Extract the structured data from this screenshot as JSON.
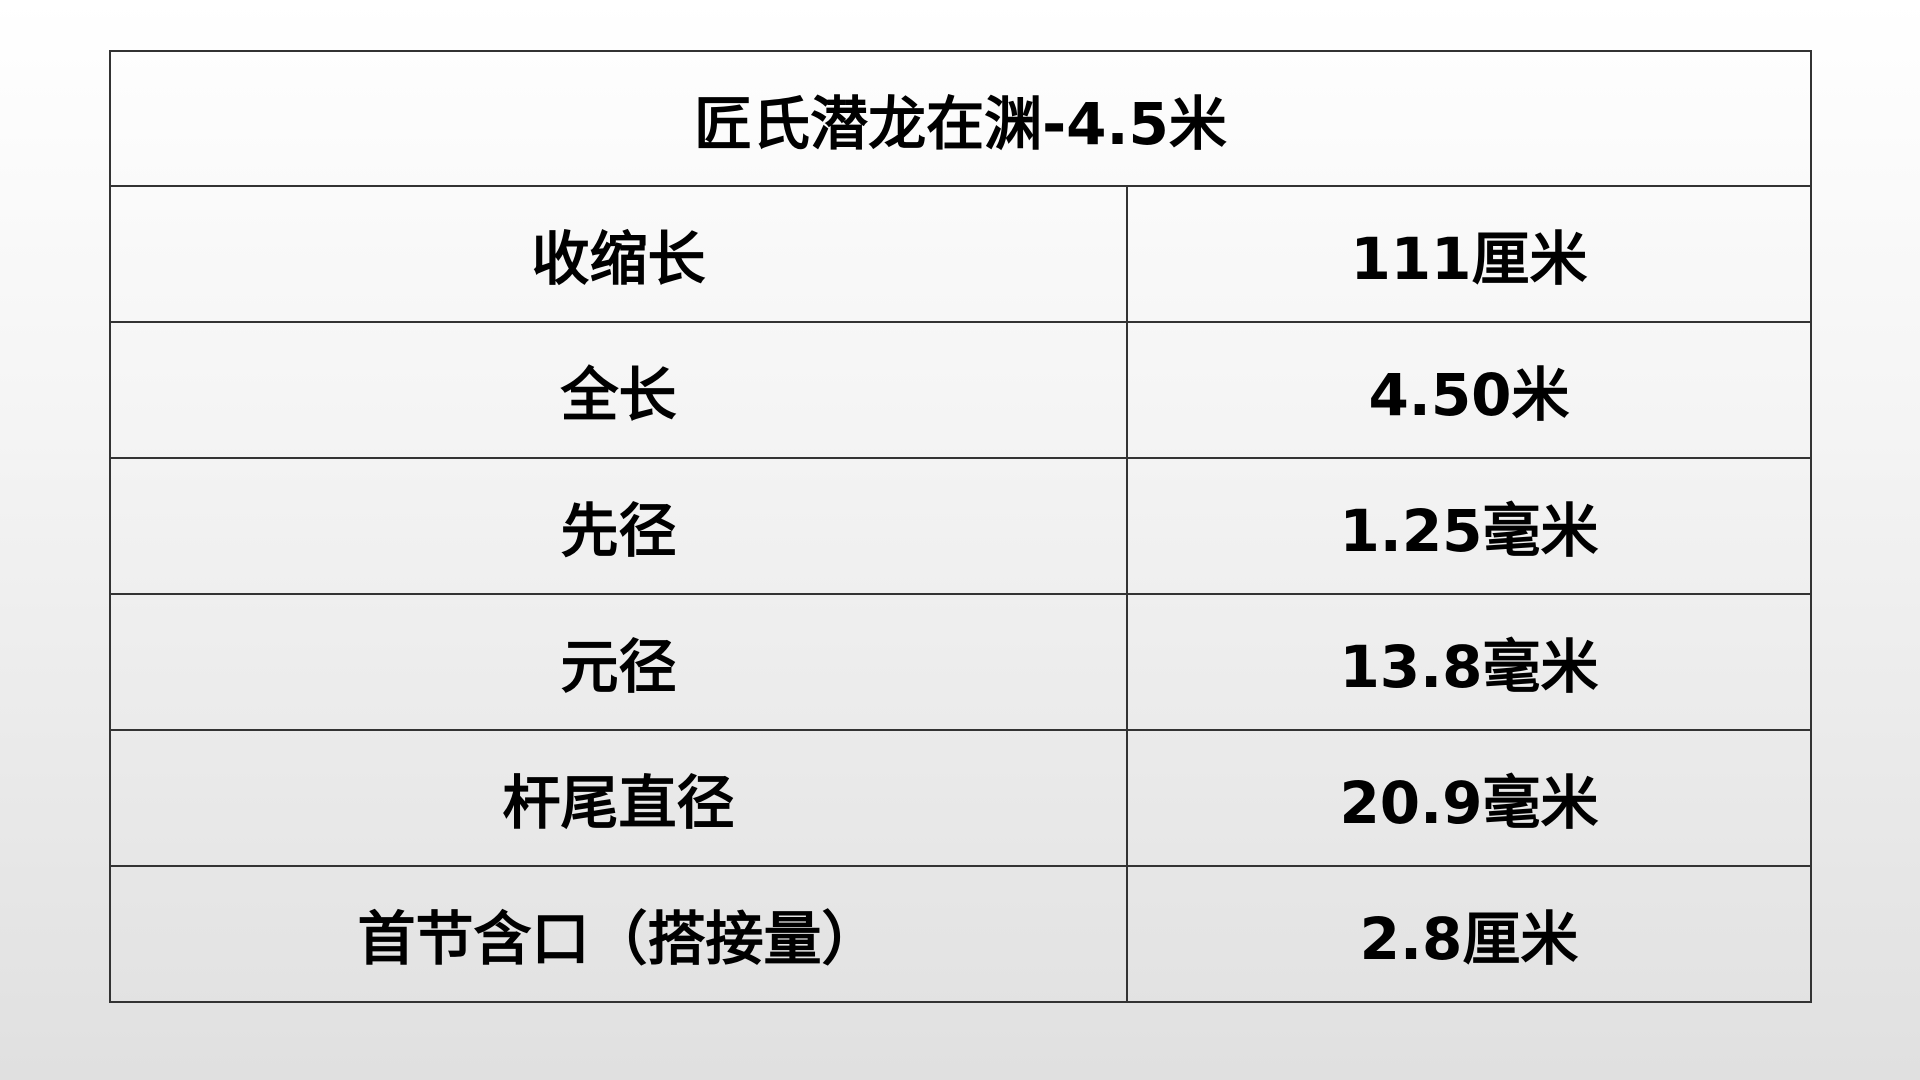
{
  "table": {
    "title": "匠氏潜龙在渊-4.5米",
    "rows": [
      {
        "label": "收缩长",
        "value": "111厘米"
      },
      {
        "label": "全长",
        "value": "4.50米"
      },
      {
        "label": "先径",
        "value": "1.25毫米"
      },
      {
        "label": "元径",
        "value": "13.8毫米"
      },
      {
        "label": "杆尾直径",
        "value": "20.9毫米"
      },
      {
        "label": "首节含口（搭接量）",
        "value": "2.8厘米"
      }
    ]
  }
}
